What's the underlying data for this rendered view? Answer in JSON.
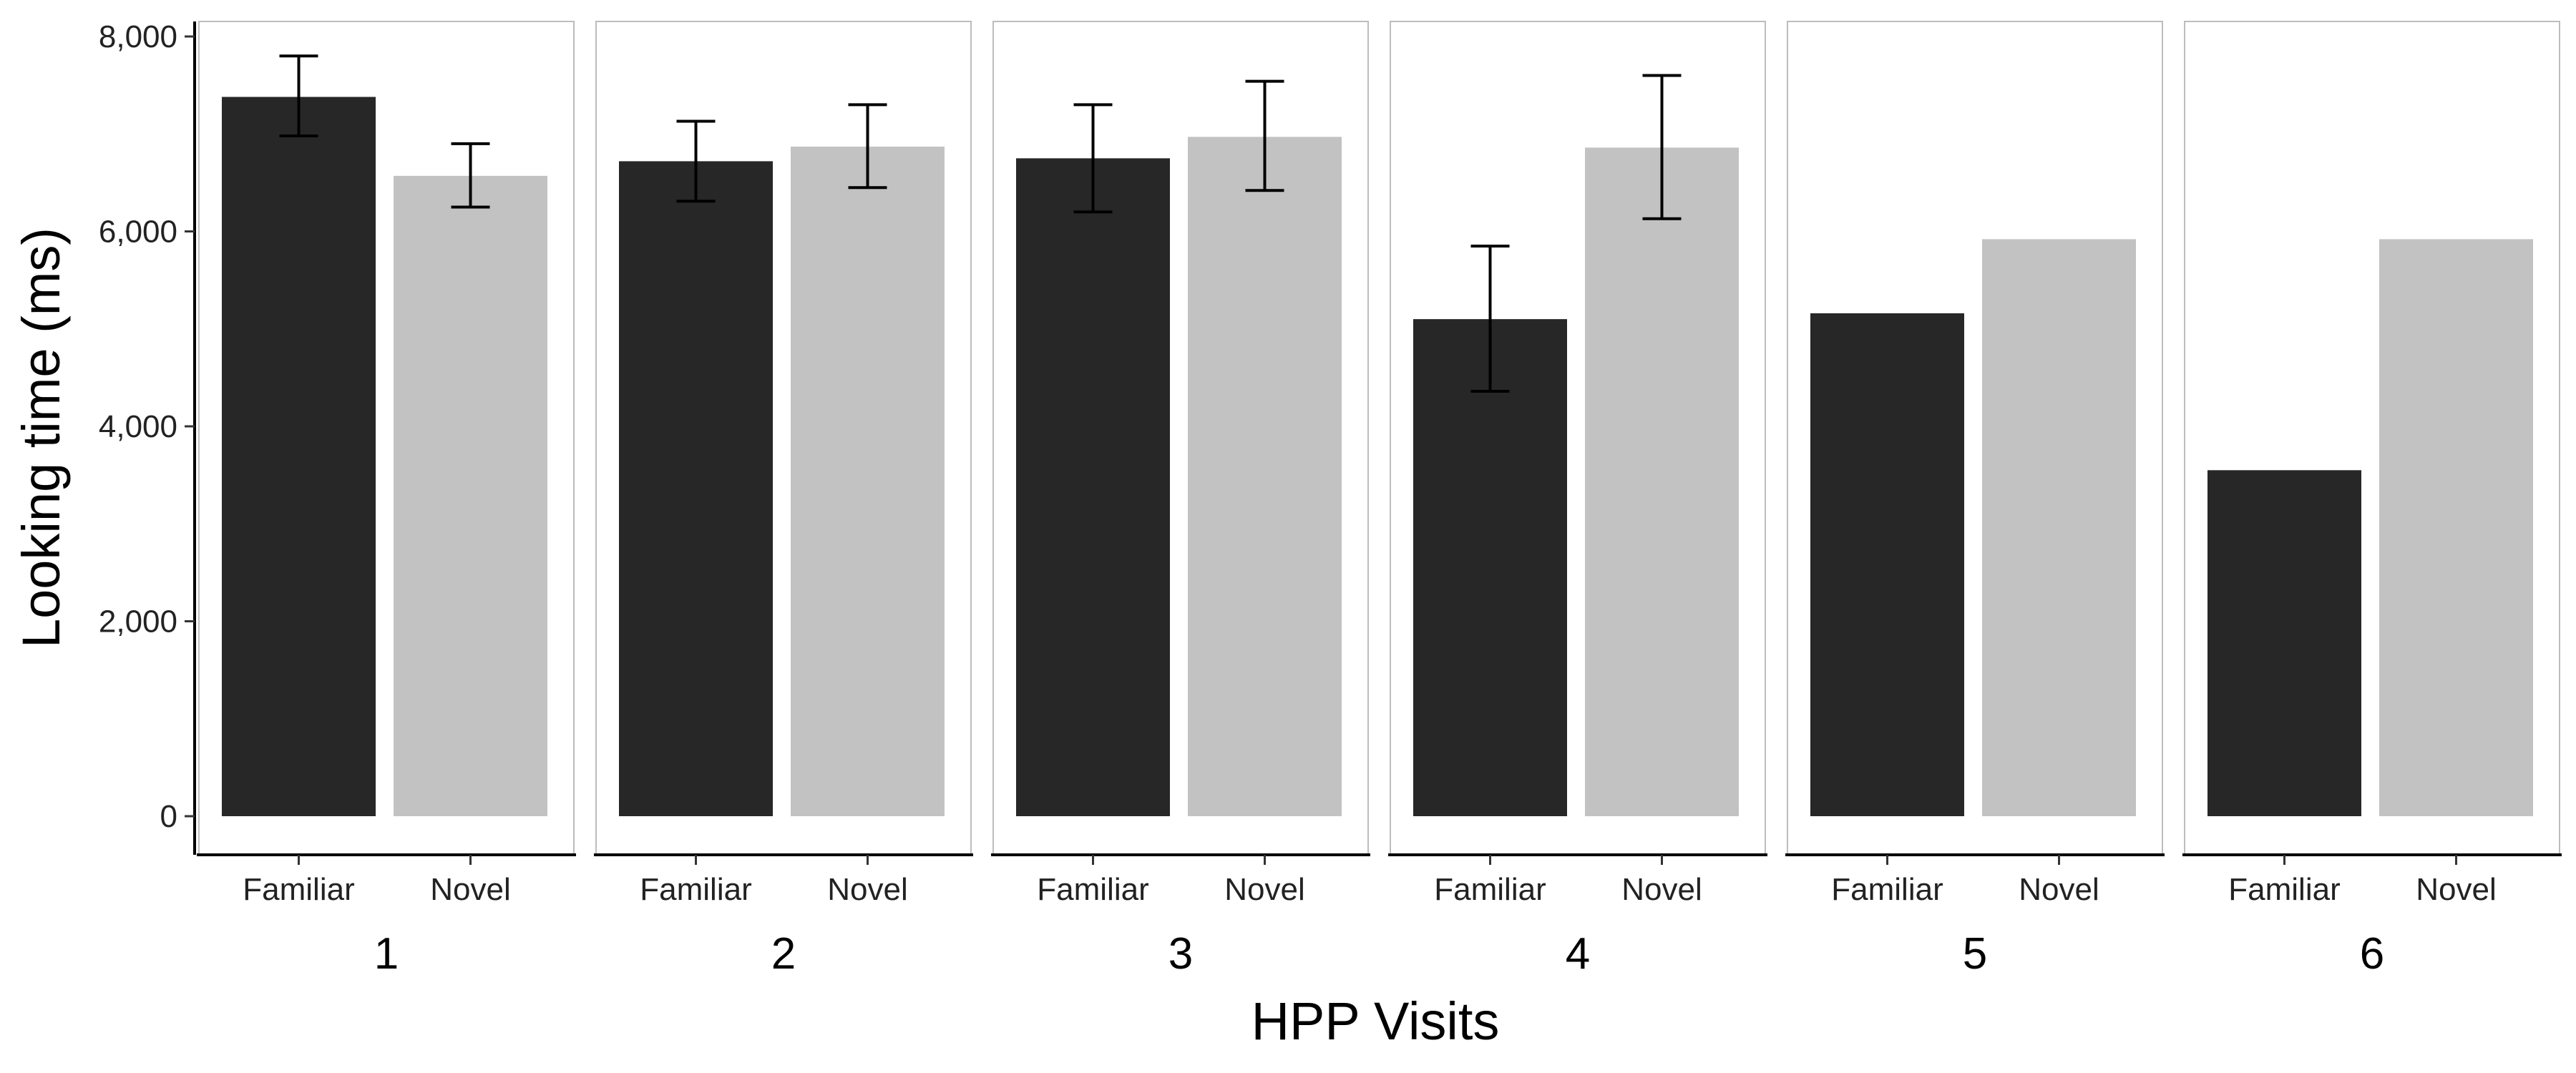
{
  "chart_data": {
    "type": "bar",
    "title": "",
    "xlabel": "HPP Visits",
    "ylabel": "Looking time (ms)",
    "ylim": [
      0,
      8000
    ],
    "yticks": [
      0,
      2000,
      4000,
      6000,
      8000
    ],
    "ytick_labels": [
      "0",
      "2,000",
      "4,000",
      "6,000",
      "8,000"
    ],
    "categories": [
      "Familiar",
      "Novel"
    ],
    "colors": {
      "Familiar": "#272727",
      "Novel": "#c2c2c2"
    },
    "grid": false,
    "legend": "none",
    "facets": [
      {
        "label": "1",
        "values": [
          7380,
          6570
        ],
        "errors": [
          [
            6980,
            7800
          ],
          [
            6250,
            6900
          ]
        ]
      },
      {
        "label": "2",
        "values": [
          6720,
          6870
        ],
        "errors": [
          [
            6310,
            7130
          ],
          [
            6450,
            7300
          ]
        ]
      },
      {
        "label": "3",
        "values": [
          6750,
          6970
        ],
        "errors": [
          [
            6200,
            7300
          ],
          [
            6420,
            7540
          ]
        ]
      },
      {
        "label": "4",
        "values": [
          5100,
          6860
        ],
        "errors": [
          [
            4360,
            5850
          ],
          [
            6130,
            7600
          ]
        ]
      },
      {
        "label": "5",
        "values": [
          5160,
          5920
        ],
        "errors": [
          null,
          null
        ]
      },
      {
        "label": "6",
        "values": [
          3550,
          5920
        ],
        "errors": [
          null,
          null
        ]
      }
    ]
  }
}
